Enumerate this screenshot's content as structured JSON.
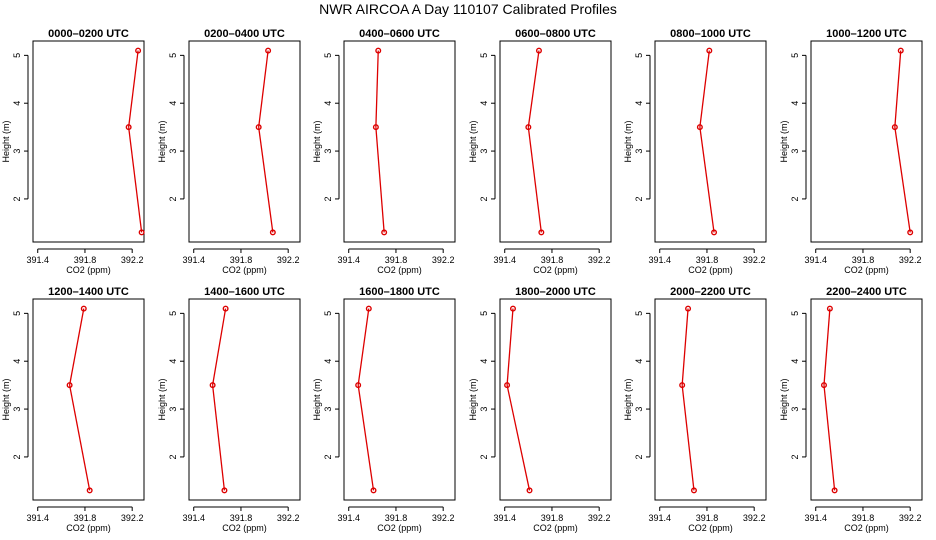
{
  "figure_title": "NWR AIRCOA A  Day 110107  Calibrated Profiles",
  "colors": {
    "series": "#dd0000",
    "axis": "#000000"
  },
  "chart_data": [
    {
      "type": "line",
      "title": "0000–0200 UTC",
      "xlabel": "CO2 (ppm)",
      "ylabel": "Height (m)",
      "x_ticks": [
        "391.4",
        "391.8",
        "392.2"
      ],
      "y_ticks": [
        "2",
        "3",
        "4",
        "5"
      ],
      "xlim": [
        391.36,
        392.3
      ],
      "ylim": [
        1.1,
        5.3
      ],
      "x": [
        392.28,
        392.17,
        392.25
      ],
      "y": [
        1.3,
        3.5,
        5.1
      ]
    },
    {
      "type": "line",
      "title": "0200–0400 UTC",
      "xlabel": "CO2 (ppm)",
      "ylabel": "Height (m)",
      "x_ticks": [
        "391.4",
        "391.8",
        "392.2"
      ],
      "y_ticks": [
        "2",
        "3",
        "4",
        "5"
      ],
      "xlim": [
        391.36,
        392.3
      ],
      "ylim": [
        1.1,
        5.3
      ],
      "x": [
        392.07,
        391.95,
        392.03
      ],
      "y": [
        1.3,
        3.5,
        5.1
      ]
    },
    {
      "type": "line",
      "title": "0400–0600 UTC",
      "xlabel": "CO2 (ppm)",
      "ylabel": "Height (m)",
      "x_ticks": [
        "391.4",
        "391.8",
        "392.2"
      ],
      "y_ticks": [
        "2",
        "3",
        "4",
        "5"
      ],
      "xlim": [
        391.36,
        392.3
      ],
      "ylim": [
        1.1,
        5.3
      ],
      "x": [
        391.7,
        391.63,
        391.65
      ],
      "y": [
        1.3,
        3.5,
        5.1
      ]
    },
    {
      "type": "line",
      "title": "0600–0800 UTC",
      "xlabel": "CO2 (ppm)",
      "ylabel": "Height (m)",
      "x_ticks": [
        "391.4",
        "391.8",
        "392.2"
      ],
      "y_ticks": [
        "2",
        "3",
        "4",
        "5"
      ],
      "xlim": [
        391.36,
        392.3
      ],
      "ylim": [
        1.1,
        5.3
      ],
      "x": [
        391.71,
        391.6,
        391.69
      ],
      "y": [
        1.3,
        3.5,
        5.1
      ]
    },
    {
      "type": "line",
      "title": "0800–1000 UTC",
      "xlabel": "CO2 (ppm)",
      "ylabel": "Height (m)",
      "x_ticks": [
        "391.4",
        "391.8",
        "392.2"
      ],
      "y_ticks": [
        "2",
        "3",
        "4",
        "5"
      ],
      "xlim": [
        391.36,
        392.3
      ],
      "ylim": [
        1.1,
        5.3
      ],
      "x": [
        391.86,
        391.74,
        391.82
      ],
      "y": [
        1.3,
        3.5,
        5.1
      ]
    },
    {
      "type": "line",
      "title": "1000–1200 UTC",
      "xlabel": "CO2 (ppm)",
      "ylabel": "Height (m)",
      "x_ticks": [
        "391.4",
        "391.8",
        "392.2"
      ],
      "y_ticks": [
        "2",
        "3",
        "4",
        "5"
      ],
      "xlim": [
        391.36,
        392.3
      ],
      "ylim": [
        1.1,
        5.3
      ],
      "x": [
        392.2,
        392.07,
        392.12
      ],
      "y": [
        1.3,
        3.5,
        5.1
      ]
    },
    {
      "type": "line",
      "title": "1200–1400 UTC",
      "xlabel": "CO2 (ppm)",
      "ylabel": "Height (m)",
      "x_ticks": [
        "391.4",
        "391.8",
        "392.2"
      ],
      "y_ticks": [
        "2",
        "3",
        "4",
        "5"
      ],
      "xlim": [
        391.36,
        392.3
      ],
      "ylim": [
        1.1,
        5.3
      ],
      "x": [
        391.84,
        391.67,
        391.79
      ],
      "y": [
        1.3,
        3.5,
        5.1
      ]
    },
    {
      "type": "line",
      "title": "1400–1600 UTC",
      "xlabel": "CO2 (ppm)",
      "ylabel": "Height (m)",
      "x_ticks": [
        "391.4",
        "391.8",
        "392.2"
      ],
      "y_ticks": [
        "2",
        "3",
        "4",
        "5"
      ],
      "xlim": [
        391.36,
        392.3
      ],
      "ylim": [
        1.1,
        5.3
      ],
      "x": [
        391.66,
        391.56,
        391.67
      ],
      "y": [
        1.3,
        3.5,
        5.1
      ]
    },
    {
      "type": "line",
      "title": "1600–1800 UTC",
      "xlabel": "CO2 (ppm)",
      "ylabel": "Height (m)",
      "x_ticks": [
        "391.4",
        "391.8",
        "392.2"
      ],
      "y_ticks": [
        "2",
        "3",
        "4",
        "5"
      ],
      "xlim": [
        391.36,
        392.3
      ],
      "ylim": [
        1.1,
        5.3
      ],
      "x": [
        391.61,
        391.48,
        391.57
      ],
      "y": [
        1.3,
        3.5,
        5.1
      ]
    },
    {
      "type": "line",
      "title": "1800–2000 UTC",
      "xlabel": "CO2 (ppm)",
      "ylabel": "Height (m)",
      "x_ticks": [
        "391.4",
        "391.8",
        "392.2"
      ],
      "y_ticks": [
        "2",
        "3",
        "4",
        "5"
      ],
      "xlim": [
        391.36,
        392.3
      ],
      "ylim": [
        1.1,
        5.3
      ],
      "x": [
        391.61,
        391.42,
        391.47
      ],
      "y": [
        1.3,
        3.5,
        5.1
      ]
    },
    {
      "type": "line",
      "title": "2000–2200 UTC",
      "xlabel": "CO2 (ppm)",
      "ylabel": "Height (m)",
      "x_ticks": [
        "391.4",
        "391.8",
        "392.2"
      ],
      "y_ticks": [
        "2",
        "3",
        "4",
        "5"
      ],
      "xlim": [
        391.36,
        392.3
      ],
      "ylim": [
        1.1,
        5.3
      ],
      "x": [
        391.69,
        391.59,
        391.64
      ],
      "y": [
        1.3,
        3.5,
        5.1
      ]
    },
    {
      "type": "line",
      "title": "2200–2400 UTC",
      "xlabel": "CO2 (ppm)",
      "ylabel": "Height (m)",
      "x_ticks": [
        "391.4",
        "391.8",
        "392.2"
      ],
      "y_ticks": [
        "2",
        "3",
        "4",
        "5"
      ],
      "xlim": [
        391.36,
        392.3
      ],
      "ylim": [
        1.1,
        5.3
      ],
      "x": [
        391.56,
        391.47,
        391.52
      ],
      "y": [
        1.3,
        3.5,
        5.1
      ]
    }
  ]
}
